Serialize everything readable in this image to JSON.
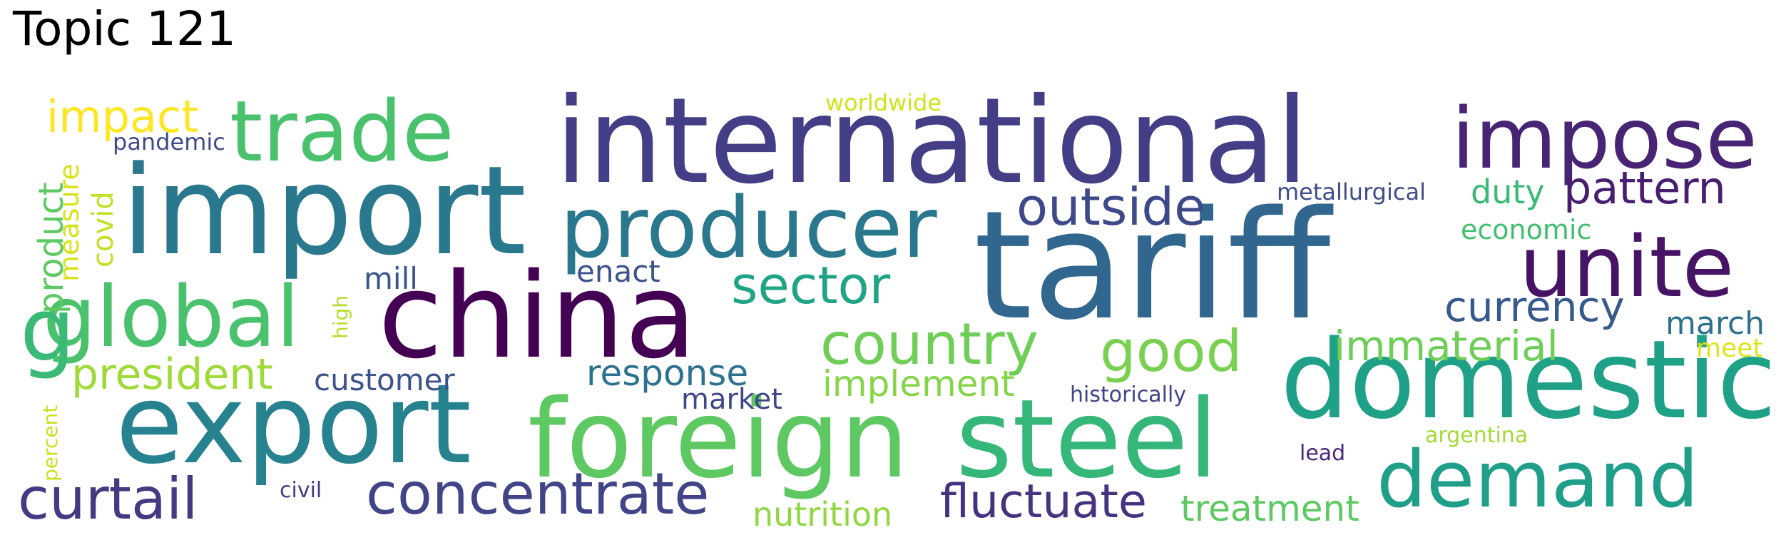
{
  "title": "Topic 121",
  "words": [
    {
      "text": "tariff",
      "color": "#31668e"
    },
    {
      "text": "international",
      "color": "#433e85"
    },
    {
      "text": "import",
      "color": "#2a788e"
    },
    {
      "text": "china",
      "color": "#440154"
    },
    {
      "text": "export",
      "color": "#26828e"
    },
    {
      "text": "foreign",
      "color": "#5ec962"
    },
    {
      "text": "steel",
      "color": "#35b779"
    },
    {
      "text": "domestic",
      "color": "#1fa187"
    },
    {
      "text": "impose",
      "color": "#482475"
    },
    {
      "text": "unite",
      "color": "#471365"
    },
    {
      "text": "producer",
      "color": "#2a788e"
    },
    {
      "text": "trade",
      "color": "#4ac16d"
    },
    {
      "text": "global",
      "color": "#4ac16d"
    },
    {
      "text": "demand",
      "color": "#1f9e89"
    },
    {
      "text": "concentrate",
      "color": "#414487"
    },
    {
      "text": "curtail",
      "color": "#443983"
    },
    {
      "text": "country",
      "color": "#6ece58"
    },
    {
      "text": "good",
      "color": "#7ad151"
    },
    {
      "text": "outside",
      "color": "#3e4989"
    },
    {
      "text": "sector",
      "color": "#20a486"
    },
    {
      "text": "fluctuate",
      "color": "#46337f"
    },
    {
      "text": "pattern",
      "color": "#481f70"
    },
    {
      "text": "currency",
      "color": "#375a8c"
    },
    {
      "text": "president",
      "color": "#a0da39"
    },
    {
      "text": "impact",
      "color": "#fde725"
    },
    {
      "text": "treatment",
      "color": "#5ec962"
    },
    {
      "text": "immaterial",
      "color": "#6ece58"
    },
    {
      "text": "product",
      "color": "#5ec962"
    },
    {
      "text": "g",
      "color": "#3aba76"
    },
    {
      "text": "response",
      "color": "#2c728e"
    },
    {
      "text": "implement",
      "color": "#86d549"
    },
    {
      "text": "nutrition",
      "color": "#90d743"
    },
    {
      "text": "customer",
      "color": "#3b528b"
    },
    {
      "text": "duty",
      "color": "#3aba76"
    },
    {
      "text": "march",
      "color": "#2d718e"
    },
    {
      "text": "measure",
      "color": "#d8e219"
    },
    {
      "text": "covid",
      "color": "#c2df23"
    },
    {
      "text": "market",
      "color": "#3f4788"
    },
    {
      "text": "enact",
      "color": "#3b528b"
    },
    {
      "text": "mill",
      "color": "#39558c"
    },
    {
      "text": "economic",
      "color": "#42be71"
    },
    {
      "text": "meet",
      "color": "#dde318"
    },
    {
      "text": "pandemic",
      "color": "#3e4a89"
    },
    {
      "text": "worldwide",
      "color": "#d2e21b"
    },
    {
      "text": "metallurgical",
      "color": "#3e4c8a"
    },
    {
      "text": "historically",
      "color": "#414487"
    },
    {
      "text": "argentina",
      "color": "#a2da37"
    },
    {
      "text": "lead",
      "color": "#482878"
    },
    {
      "text": "civil",
      "color": "#443983"
    },
    {
      "text": "high",
      "color": "#b5de2b"
    },
    {
      "text": "percent",
      "color": "#cae11f"
    }
  ]
}
